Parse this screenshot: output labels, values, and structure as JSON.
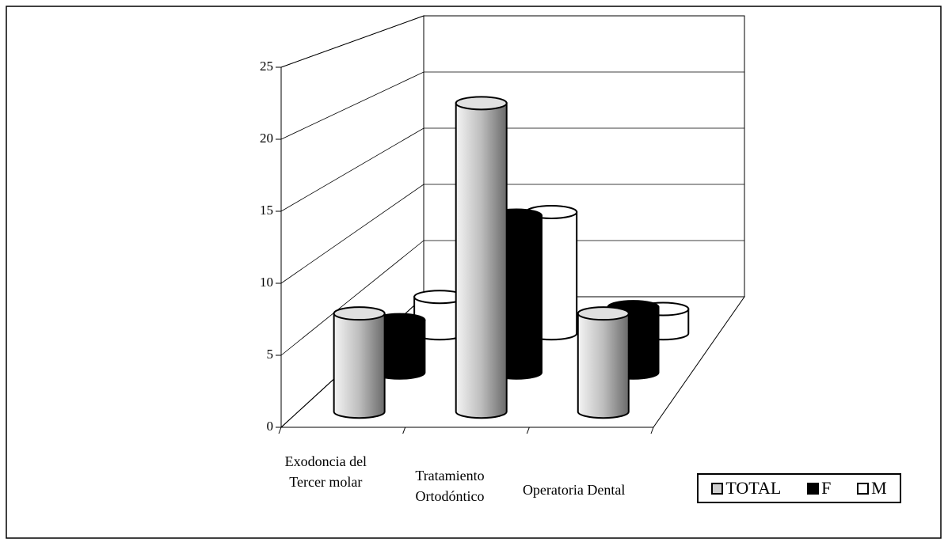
{
  "chart_data": {
    "type": "bar3d",
    "categories": [
      "Exodoncia del Tercer molar",
      "Tratamiento Ortodóntico",
      "Operatoria Dental"
    ],
    "series": [
      {
        "name": "TOTAL",
        "color": "#cfcfcf",
        "values": [
          7,
          22,
          7
        ]
      },
      {
        "name": "F",
        "color": "#000000",
        "values": [
          4,
          12,
          5
        ]
      },
      {
        "name": "M",
        "color": "#ffffff",
        "values": [
          3,
          10,
          2
        ]
      }
    ],
    "ylim": [
      0,
      25
    ],
    "yticks": [
      0,
      5,
      10,
      15,
      20,
      25
    ],
    "grid": true,
    "legend": "bottom-right"
  }
}
